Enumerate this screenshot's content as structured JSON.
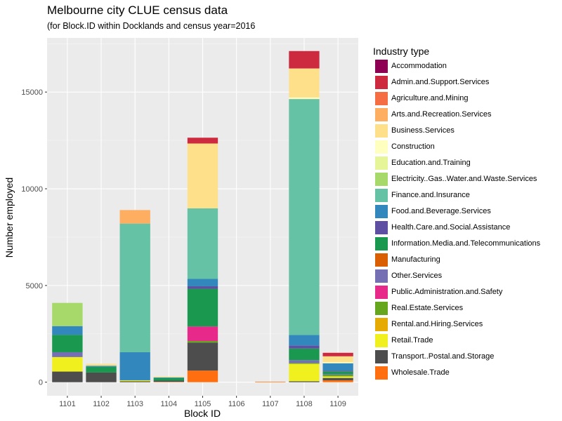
{
  "title": "Melbourne city CLUE census data",
  "subtitle": "(for Block.ID within Docklands and census year=2016",
  "legend_title": "Industry type",
  "chart_data": {
    "type": "bar",
    "stacked": true,
    "xlabel": "Block ID",
    "ylabel": "Number employed",
    "ylim": [
      -700,
      17800
    ],
    "yticks": [
      0,
      5000,
      10000,
      15000
    ],
    "ytick_labels": [
      "0",
      "5000",
      "10000",
      "15000"
    ],
    "grid": true,
    "legend_position": "right",
    "categories": [
      "1101",
      "1102",
      "1103",
      "1104",
      "1105",
      "1106",
      "1107",
      "1108",
      "1109"
    ],
    "series": [
      {
        "name": "Accommodation",
        "color": "#8E0152",
        "values": [
          0,
          0,
          0,
          0,
          0,
          0,
          0,
          0,
          0
        ]
      },
      {
        "name": "Admin.and.Support.Services",
        "color": "#CE2A3F",
        "values": [
          0,
          0,
          0,
          0,
          300,
          0,
          0,
          900,
          180
        ]
      },
      {
        "name": "Agriculture.and.Mining",
        "color": "#F46D43",
        "values": [
          0,
          0,
          0,
          0,
          0,
          0,
          0,
          0,
          0
        ]
      },
      {
        "name": "Arts.and.Recreation.Services",
        "color": "#FDAE61",
        "values": [
          0,
          0,
          700,
          0,
          0,
          0,
          0,
          0,
          0
        ]
      },
      {
        "name": "Business.Services",
        "color": "#FEE08B",
        "values": [
          0,
          100,
          0,
          40,
          3350,
          0,
          0,
          1500,
          300
        ]
      },
      {
        "name": "Construction",
        "color": "#FFFFBF",
        "values": [
          0,
          0,
          0,
          0,
          0,
          0,
          0,
          80,
          60
        ]
      },
      {
        "name": "Education.and.Training",
        "color": "#E6F598",
        "values": [
          0,
          0,
          0,
          0,
          0,
          0,
          0,
          0,
          0
        ]
      },
      {
        "name": "Electricity..Gas..Water.and.Waste.Services",
        "color": "#A6D96A",
        "values": [
          1200,
          0,
          0,
          0,
          0,
          0,
          0,
          0,
          0
        ]
      },
      {
        "name": "Finance.and.Insurance",
        "color": "#66C2A5",
        "values": [
          0,
          0,
          6650,
          0,
          3650,
          0,
          0,
          12200,
          0
        ]
      },
      {
        "name": "Food.and.Beverage.Services",
        "color": "#3288BD",
        "values": [
          450,
          50,
          1450,
          30,
          380,
          0,
          0,
          550,
          380
        ]
      },
      {
        "name": "Health.Care.and.Social.Assistance",
        "color": "#5E4FA2",
        "values": [
          0,
          0,
          0,
          0,
          130,
          0,
          0,
          150,
          40
        ]
      },
      {
        "name": "Information.Media.and.Telecommunications",
        "color": "#1A9850",
        "values": [
          900,
          300,
          0,
          140,
          1950,
          0,
          0,
          600,
          140
        ]
      },
      {
        "name": "Manufacturing",
        "color": "#D95F02",
        "values": [
          0,
          0,
          0,
          0,
          0,
          0,
          0,
          0,
          0
        ]
      },
      {
        "name": "Other.Services",
        "color": "#7570B3",
        "values": [
          250,
          0,
          0,
          0,
          0,
          0,
          0,
          150,
          50
        ]
      },
      {
        "name": "Public.Administration.and.Safety",
        "color": "#E7298A",
        "values": [
          0,
          0,
          0,
          0,
          750,
          0,
          0,
          0,
          0
        ]
      },
      {
        "name": "Real.Estate.Services",
        "color": "#66A61E",
        "values": [
          0,
          0,
          0,
          0,
          80,
          0,
          0,
          40,
          70
        ]
      },
      {
        "name": "Rental.and.Hiring.Services",
        "color": "#E6AB02",
        "values": [
          0,
          0,
          0,
          0,
          0,
          0,
          0,
          0,
          0
        ]
      },
      {
        "name": "Retail.Trade",
        "color": "#F0F01E",
        "values": [
          750,
          0,
          50,
          0,
          0,
          0,
          0,
          900,
          80
        ]
      },
      {
        "name": "Transport..Postal.and.Storage",
        "color": "#4D4D4D",
        "values": [
          550,
          500,
          50,
          60,
          1450,
          0,
          0,
          50,
          120
        ]
      },
      {
        "name": "Wholesale.Trade",
        "color": "#FF6F0F",
        "values": [
          0,
          0,
          0,
          20,
          600,
          0,
          30,
          0,
          100
        ]
      }
    ]
  }
}
